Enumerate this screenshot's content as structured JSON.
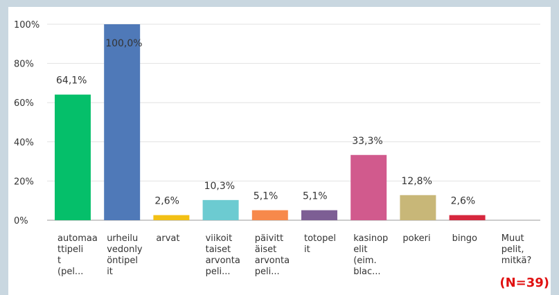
{
  "chart_data": {
    "type": "bar",
    "categories": [
      "automaa\nttipeli\nt\n(pel...",
      "urheilu\nvedonly\nöntipel\nit",
      "arvat",
      "viikoit\ntaiset\narvonta\npeli...",
      "päivitt\näiset\narvonta\npeli...",
      "totopel\nit",
      "kasinop\nelit\n(eim.\nblac...",
      "pokeri",
      "bingo",
      "Muut\npelit,\nmitkä?"
    ],
    "values": [
      64.1,
      100,
      2.6,
      10.3,
      5.1,
      5.1,
      33.3,
      12.8,
      2.6,
      0
    ],
    "value_labels": [
      "64,1%",
      "100,0%",
      "2,6%",
      "10,3%",
      "5,1%",
      "5,1%",
      "33,3%",
      "12,8%",
      "2,6%",
      null
    ],
    "colors": [
      "#05bf6a",
      "#4f79b8",
      "#f2c015",
      "#6ccbd1",
      "#f7894b",
      "#7d5e94",
      "#d15a8d",
      "#c8b778",
      "#d6273e",
      "#bbbbbb"
    ],
    "ylim": [
      0,
      100
    ],
    "yticks": [
      {
        "value": 0,
        "label": "0%"
      },
      {
        "value": 20,
        "label": "20%"
      },
      {
        "value": 40,
        "label": "40%"
      },
      {
        "value": 60,
        "label": "60%"
      },
      {
        "value": 80,
        "label": "80%"
      },
      {
        "value": 100,
        "label": "100%"
      }
    ],
    "grid": true,
    "annotation": "(N=39)"
  }
}
